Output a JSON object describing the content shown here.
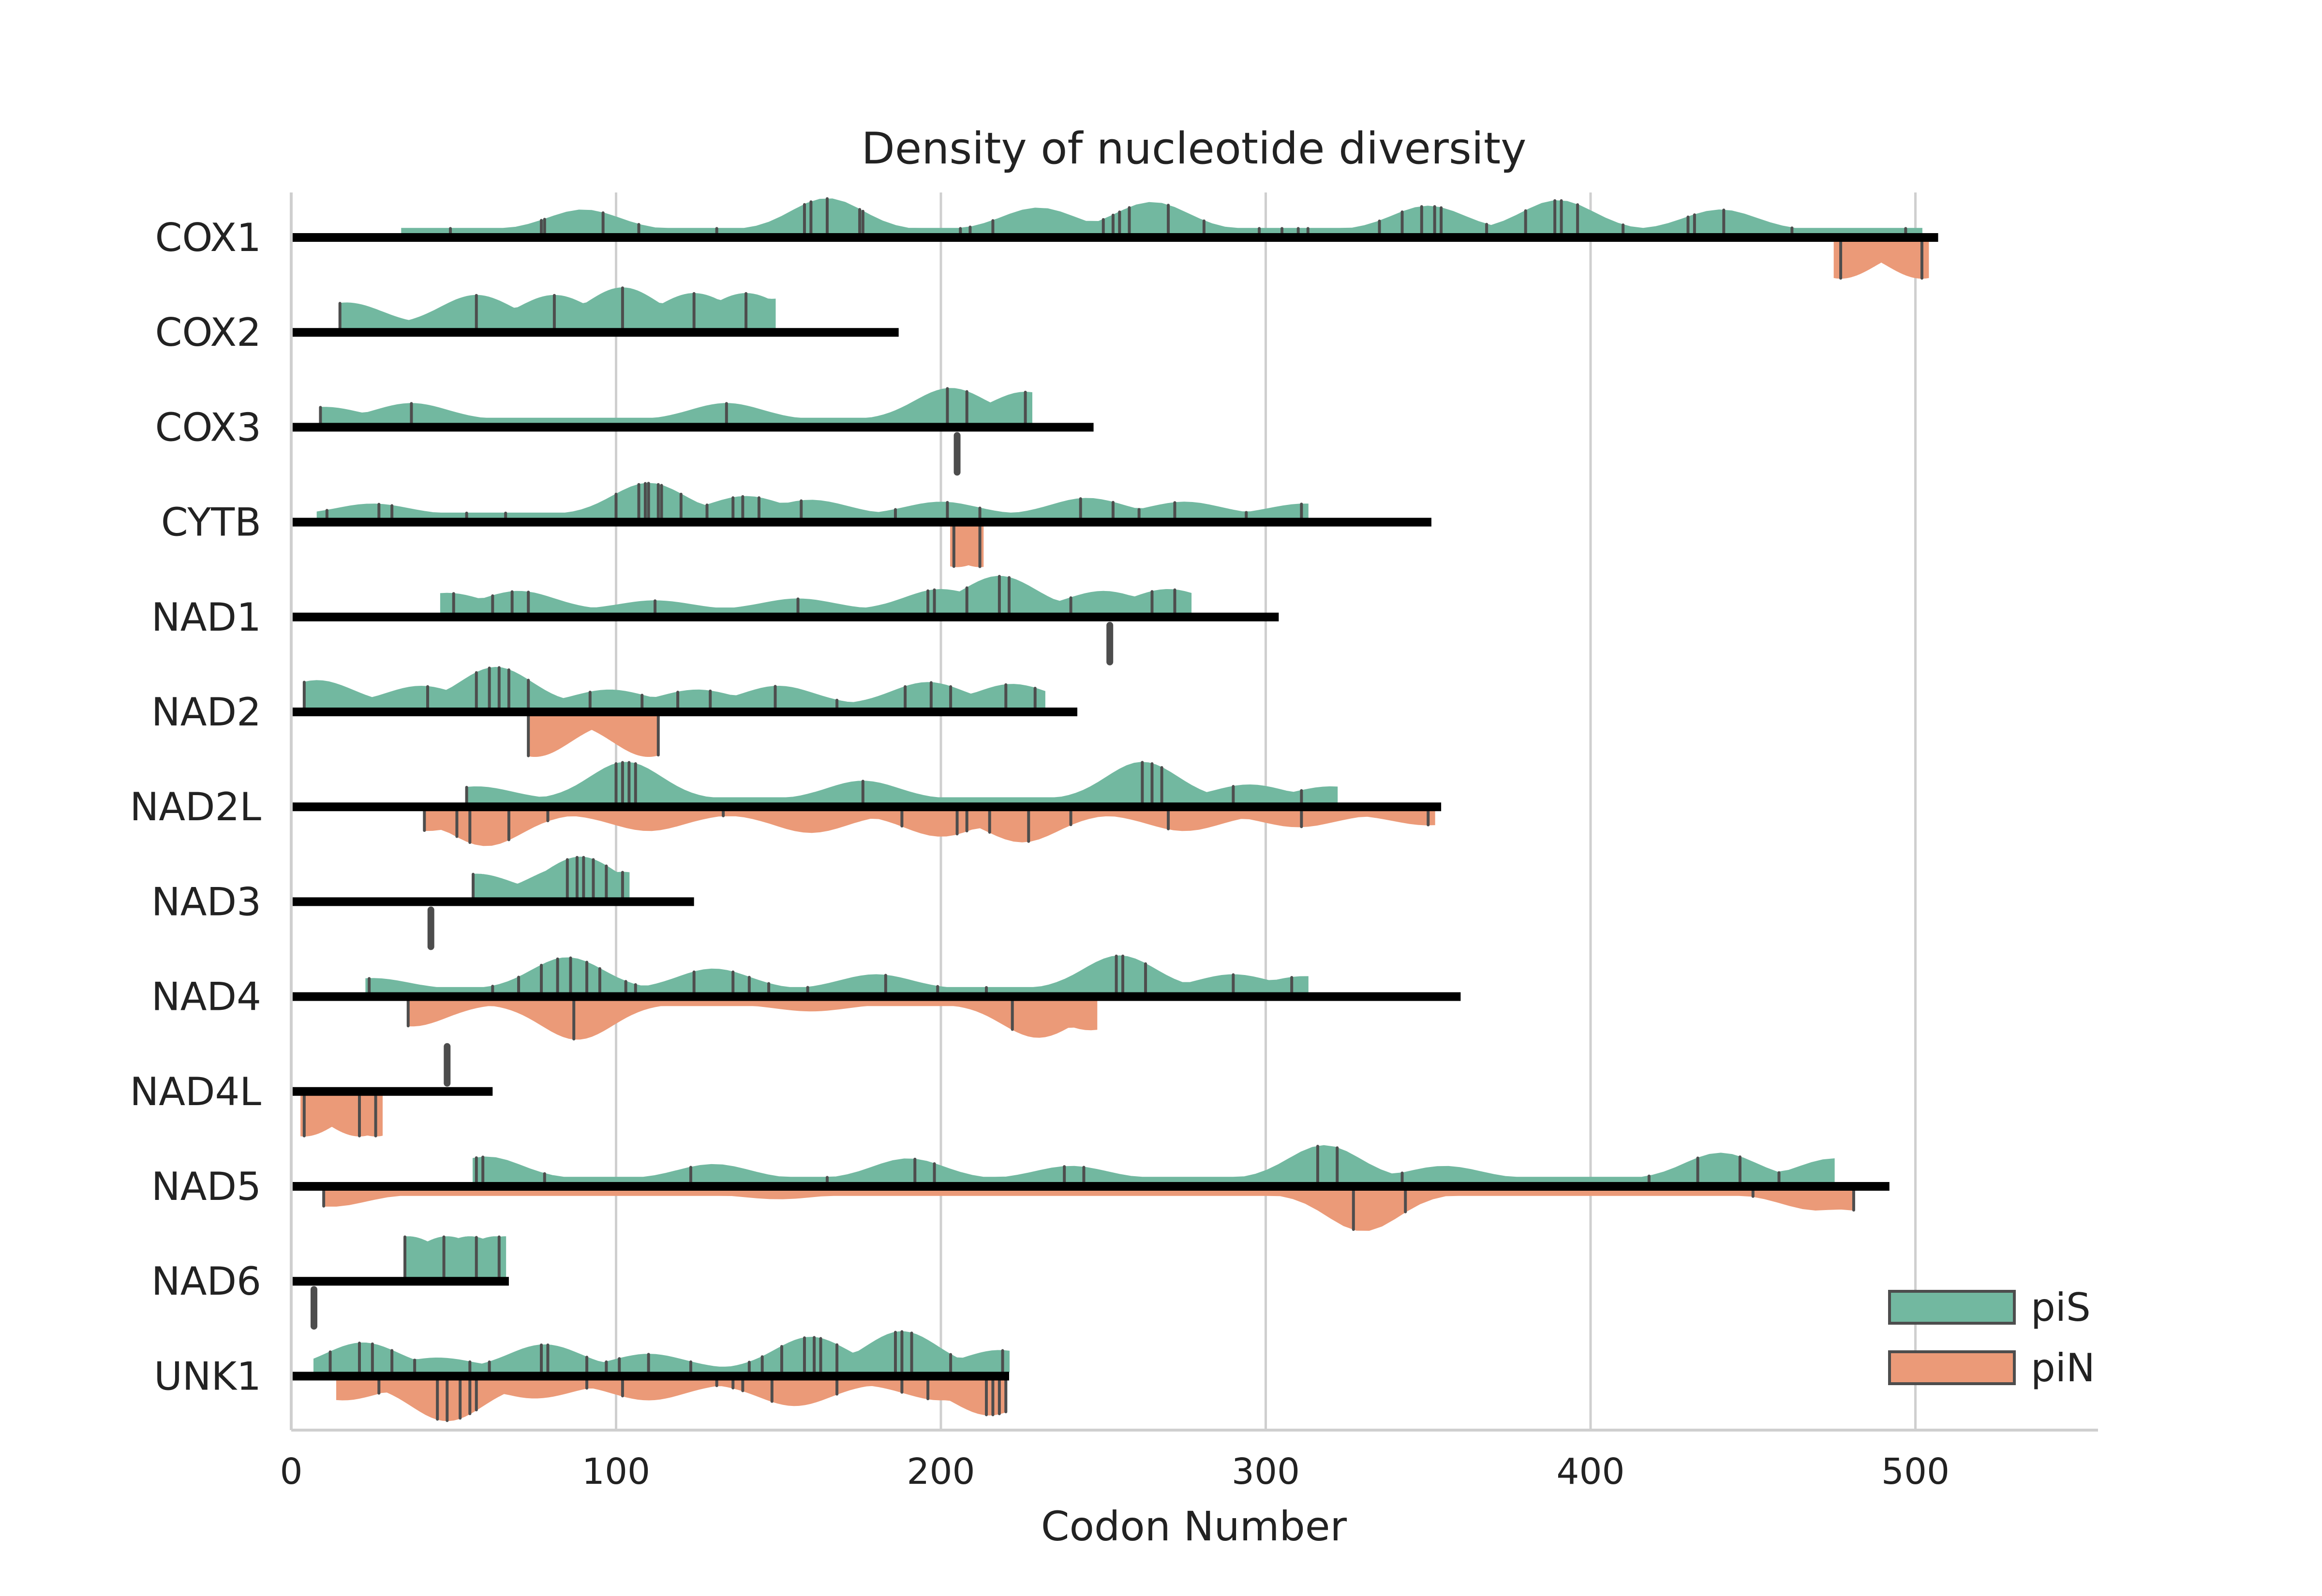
{
  "chart_data": {
    "type": "violin",
    "title": "Density of nucleotide diversity",
    "xlabel": "Codon Number",
    "ylabel": "",
    "xlim": [
      0,
      558
    ],
    "xticks": [
      0,
      100,
      200,
      300,
      400,
      500
    ],
    "xtick_labels": [
      "0",
      "100",
      "200",
      "300",
      "400",
      "500"
    ],
    "grid": "x",
    "legend_position": "bottom-right",
    "legend": [
      {
        "key": "piS",
        "label": "piS",
        "color": "#72b8a0"
      },
      {
        "key": "piN",
        "label": "piN",
        "color": "#eb9a78"
      }
    ],
    "colors": {
      "piS": "#72b8a0",
      "piN": "#eb9a78",
      "gene_bar": "#000000",
      "site_tick": "#4d4d4d",
      "grid": "#cfcfcf"
    },
    "genes": [
      {
        "name": "COX1",
        "length": 507,
        "piS": {
          "range": [
            34,
            502
          ],
          "peaks": [
            [
              90,
              0.55
            ],
            [
              165,
              0.85
            ],
            [
              230,
              0.6
            ],
            [
              265,
              0.75
            ],
            [
              350,
              0.65
            ],
            [
              390,
              0.8
            ],
            [
              440,
              0.55
            ]
          ],
          "sites": [
            49,
            77,
            78,
            96,
            107,
            131,
            158,
            160,
            165,
            175,
            176,
            206,
            209,
            216,
            250,
            253,
            255,
            258,
            270,
            281,
            298,
            305,
            310,
            313,
            335,
            342,
            348,
            352,
            354,
            368,
            380,
            389,
            391,
            396,
            410,
            430,
            432,
            441,
            462,
            497
          ]
        },
        "piN": {
          "range": [
            475,
            504
          ],
          "peaks": [
            [
              477,
              0.9
            ],
            [
              502,
              0.9
            ]
          ],
          "sites": [
            477,
            502
          ]
        }
      },
      {
        "name": "COX2",
        "length": 187,
        "piS": {
          "range": [
            15,
            149
          ],
          "peaks": [
            [
              17,
              0.6
            ],
            [
              57,
              0.8
            ],
            [
              81,
              0.8
            ],
            [
              102,
              1.0
            ],
            [
              124,
              0.85
            ],
            [
              140,
              0.85
            ],
            [
              149,
              0.7
            ]
          ],
          "sites": [
            15,
            57,
            81,
            102,
            124,
            140
          ]
        },
        "piN": null
      },
      {
        "name": "COX3",
        "length": 247,
        "piS": {
          "range": [
            9,
            228
          ],
          "peaks": [
            [
              10,
              0.35
            ],
            [
              37,
              0.45
            ],
            [
              134,
              0.45
            ],
            [
              203,
              0.85
            ],
            [
              226,
              0.75
            ]
          ],
          "sites": [
            9,
            37,
            134,
            202,
            208,
            226
          ]
        },
        "piN": {
          "range": [
            205,
            205
          ],
          "peaks": [],
          "sites": [
            205
          ]
        }
      },
      {
        "name": "CYTB",
        "length": 351,
        "piS": {
          "range": [
            8,
            313
          ],
          "peaks": [
            [
              25,
              0.3
            ],
            [
              110,
              0.85
            ],
            [
              140,
              0.5
            ],
            [
              160,
              0.4
            ],
            [
              200,
              0.35
            ],
            [
              245,
              0.45
            ],
            [
              275,
              0.35
            ],
            [
              312,
              0.3
            ]
          ],
          "sites": [
            11,
            27,
            31,
            54,
            66,
            100,
            107,
            109,
            110,
            113,
            114,
            120,
            128,
            136,
            139,
            144,
            157,
            186,
            202,
            212,
            243,
            253,
            261,
            272,
            294,
            311
          ]
        },
        "piN": {
          "range": [
            203,
            213
          ],
          "peaks": [
            [
              205,
              1.0
            ],
            [
              212,
              1.0
            ]
          ],
          "sites": [
            204,
            212
          ]
        }
      },
      {
        "name": "NAD1",
        "length": 304,
        "piS": {
          "range": [
            46,
            277
          ],
          "peaks": [
            [
              48,
              0.45
            ],
            [
              70,
              0.5
            ],
            [
              112,
              0.25
            ],
            [
              156,
              0.3
            ],
            [
              200,
              0.55
            ],
            [
              218,
              0.9
            ],
            [
              250,
              0.5
            ],
            [
              270,
              0.55
            ]
          ],
          "sites": [
            50,
            62,
            68,
            73,
            112,
            156,
            196,
            198,
            208,
            218,
            221,
            240,
            265,
            272
          ]
        },
        "piN": {
          "range": [
            252,
            252
          ],
          "peaks": [],
          "sites": [
            252
          ]
        }
      },
      {
        "name": "NAD2",
        "length": 242,
        "piS": {
          "range": [
            4,
            232
          ],
          "peaks": [
            [
              8,
              0.65
            ],
            [
              40,
              0.5
            ],
            [
              63,
              1.0
            ],
            [
              98,
              0.4
            ],
            [
              125,
              0.4
            ],
            [
              150,
              0.5
            ],
            [
              196,
              0.6
            ],
            [
              222,
              0.55
            ]
          ],
          "sites": [
            4,
            42,
            57,
            61,
            64,
            67,
            73,
            92,
            108,
            119,
            129,
            149,
            168,
            189,
            197,
            203,
            220,
            229
          ]
        },
        "piN": {
          "range": [
            73,
            113
          ],
          "peaks": [
            [
              75,
              1.0
            ],
            [
              110,
              1.0
            ]
          ],
          "sites": [
            73,
            113
          ]
        }
      },
      {
        "name": "NAD2L",
        "length": 354,
        "piS": {
          "range": [
            54,
            322
          ],
          "peaks": [
            [
              57,
              0.35
            ],
            [
              103,
              1.0
            ],
            [
              176,
              0.5
            ],
            [
              262,
              1.0
            ],
            [
              295,
              0.4
            ],
            [
              320,
              0.35
            ]
          ],
          "sites": [
            54,
            100,
            102,
            104,
            106,
            176,
            262,
            265,
            268,
            290,
            311
          ]
        },
        "piN": {
          "range": [
            41,
            352
          ],
          "peaks": [
            [
              42,
              0.45
            ],
            [
              60,
              0.85
            ],
            [
              110,
              0.45
            ],
            [
              160,
              0.5
            ],
            [
              200,
              0.6
            ],
            [
              225,
              0.75
            ],
            [
              275,
              0.45
            ],
            [
              310,
              0.35
            ],
            [
              350,
              0.3
            ]
          ],
          "sites": [
            41,
            51,
            55,
            67,
            79,
            133,
            188,
            205,
            208,
            215,
            227,
            240,
            270,
            311,
            350
          ]
        },
        "note": "piN drawn below bar"
      },
      {
        "name": "NAD3",
        "length": 124,
        "piS": {
          "range": [
            56,
            104
          ],
          "peaks": [
            [
              57,
              0.55
            ],
            [
              85,
              0.75
            ],
            [
              89,
              1.0
            ],
            [
              96,
              0.55
            ],
            [
              102,
              0.6
            ]
          ],
          "sites": [
            56,
            85,
            88,
            90,
            93,
            97,
            102
          ]
        },
        "piN": {
          "range": [
            43,
            43
          ],
          "peaks": [],
          "sites": [
            43
          ]
        }
      },
      {
        "name": "NAD4",
        "length": 360,
        "piS": {
          "range": [
            23,
            313
          ],
          "peaks": [
            [
              25,
              0.3
            ],
            [
              85,
              0.85
            ],
            [
              130,
              0.55
            ],
            [
              180,
              0.4
            ],
            [
              255,
              0.9
            ],
            [
              290,
              0.4
            ],
            [
              312,
              0.35
            ]
          ],
          "sites": [
            24,
            62,
            70,
            77,
            82,
            86,
            91,
            95,
            103,
            106,
            124,
            136,
            141,
            147,
            159,
            183,
            199,
            214,
            254,
            256,
            263,
            290,
            308
          ]
        },
        "piN": {
          "range": [
            36,
            248
          ],
          "peaks": [
            [
              37,
              0.6
            ],
            [
              88,
              0.95
            ],
            [
              160,
              0.2
            ],
            [
              230,
              0.9
            ],
            [
              246,
              0.7
            ]
          ],
          "sites": [
            36,
            87,
            222
          ]
        }
      },
      {
        "name": "NAD4L",
        "length": 62,
        "piS": {
          "range": [
            48,
            48
          ],
          "peaks": [],
          "sites": [
            48
          ]
        },
        "piN": {
          "range": [
            3,
            28
          ],
          "peaks": [
            [
              4,
              1.0
            ],
            [
              21,
              1.0
            ],
            [
              26,
              1.0
            ]
          ],
          "sites": [
            4,
            21,
            26
          ]
        }
      },
      {
        "name": "NAD5",
        "length": 492,
        "piS": {
          "range": [
            56,
            475
          ],
          "peaks": [
            [
              60,
              0.6
            ],
            [
              130,
              0.4
            ],
            [
              190,
              0.55
            ],
            [
              240,
              0.35
            ],
            [
              318,
              0.9
            ],
            [
              355,
              0.35
            ],
            [
              440,
              0.7
            ],
            [
              475,
              0.55
            ]
          ],
          "sites": [
            57,
            59,
            78,
            123,
            165,
            192,
            198,
            238,
            244,
            316,
            322,
            342,
            418,
            433,
            446,
            458
          ]
        },
        "piN": {
          "range": [
            10,
            481
          ],
          "peaks": [
            [
              12,
              0.35
            ],
            [
              150,
              0.15
            ],
            [
              330,
              1.0
            ],
            [
              470,
              0.45
            ],
            [
              481,
              0.45
            ]
          ],
          "sites": [
            10,
            327,
            343,
            450,
            481
          ]
        }
      },
      {
        "name": "NAD6",
        "length": 67,
        "piS": {
          "range": [
            35,
            66
          ],
          "peaks": [
            [
              36,
              1.0
            ],
            [
              48,
              1.0
            ],
            [
              55,
              1.0
            ],
            [
              63,
              1.0
            ],
            [
              66,
              1.0
            ]
          ],
          "sites": [
            35,
            47,
            57,
            64
          ]
        },
        "piN": {
          "range": [
            7,
            7
          ],
          "peaks": [],
          "sites": [
            7
          ]
        }
      },
      {
        "name": "UNK1",
        "length": 221,
        "piS": {
          "range": [
            7,
            221
          ],
          "peaks": [
            [
              22,
              0.7
            ],
            [
              45,
              0.3
            ],
            [
              78,
              0.65
            ],
            [
              110,
              0.4
            ],
            [
              160,
              0.85
            ],
            [
              188,
              1.0
            ],
            [
              218,
              0.5
            ]
          ],
          "sites": [
            12,
            21,
            25,
            31,
            38,
            55,
            61,
            77,
            79,
            91,
            97,
            101,
            110,
            123,
            141,
            145,
            151,
            158,
            161,
            163,
            168,
            186,
            188,
            191,
            203,
            219
          ]
        },
        "piN": {
          "range": [
            14,
            220
          ],
          "peaks": [
            [
              16,
              0.45
            ],
            [
              48,
              1.0
            ],
            [
              75,
              0.4
            ],
            [
              110,
              0.45
            ],
            [
              155,
              0.6
            ],
            [
              200,
              0.45
            ],
            [
              215,
              0.85
            ]
          ],
          "sites": [
            27,
            45,
            48,
            52,
            55,
            57,
            91,
            102,
            131,
            136,
            139,
            148,
            168,
            188,
            196,
            214,
            216,
            218,
            220
          ]
        }
      }
    ]
  }
}
